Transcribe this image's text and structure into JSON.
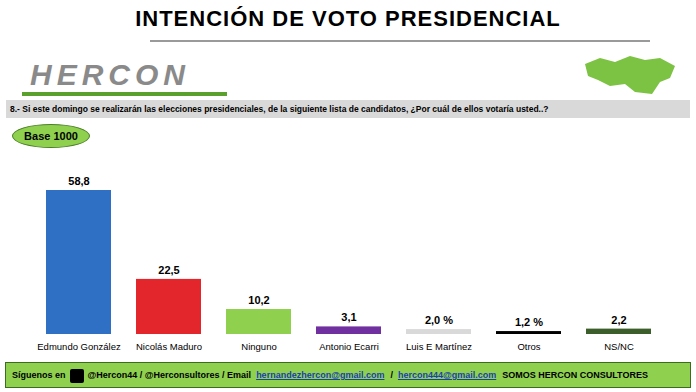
{
  "chart_data": {
    "type": "bar",
    "title": "INTENCIÓN DE VOTO PRESIDENCIAL",
    "subtitle": "8.- Si este domingo se realizarán las elecciones presidenciales, de la siguiente lista de candidatos, ¿Por cuál de ellos votaría usted..?",
    "logo": "HERCON",
    "note": "Base 1000",
    "categories": [
      "Edmundo González",
      "Nicolás Maduro",
      "Ninguno",
      "Antonio Ecarri",
      "Luis E Martínez",
      "Otros",
      "NS/NC"
    ],
    "values": [
      58.8,
      22.5,
      10.2,
      3.1,
      2.0,
      1.2,
      2.2
    ],
    "value_labels": [
      "58,8",
      "22,5",
      "10,2",
      "3,1",
      "2,0 %",
      "1,2 %",
      "2,2"
    ],
    "colors": [
      "#2f6fc4",
      "#e3262b",
      "#8fd14f",
      "#7030a0",
      "#d9d9d9",
      "#000000",
      "#3b5e2b"
    ],
    "data_labels": true,
    "tick_labels": "x",
    "grid": false,
    "footer": {
      "follow": "Síguenos en",
      "handles": "@Hercon44  /  @Herconsultores  / Email",
      "emails": [
        "hernandezhercon@gmail.com",
        "hercon444@gmail.com"
      ],
      "separator": "/",
      "tagline": "SOMOS HERCON CONSULTORES"
    }
  }
}
